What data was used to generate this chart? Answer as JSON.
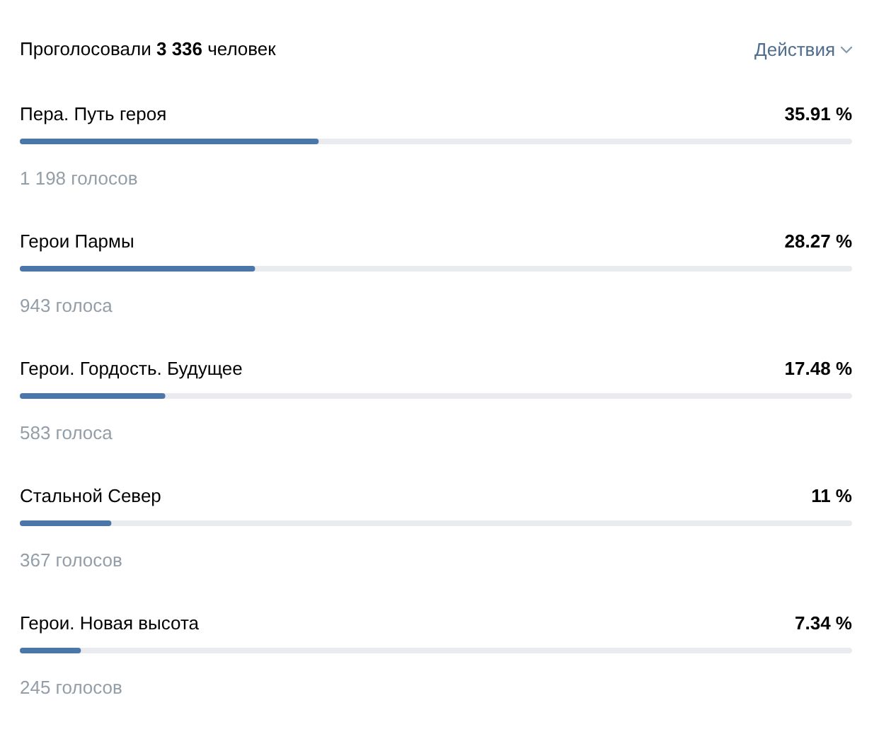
{
  "chart_data": {
    "type": "bar",
    "orientation": "horizontal",
    "title": "Проголосовали 3 336 человек",
    "categories": [
      "Пера. Путь героя",
      "Герои Пармы",
      "Герои. Гордость. Будущее",
      "Стальной Север",
      "Герои. Новая высота"
    ],
    "values": [
      35.91,
      28.27,
      17.48,
      11,
      7.34
    ],
    "color": "#4a76a8",
    "xlim": [
      0,
      100
    ],
    "tick_labels": "y",
    "value_labels": [
      "35.91 %",
      "28.27 %",
      "17.48 %",
      "11 %",
      "7.34 %"
    ],
    "annotations": [
      "Действия",
      "1 198 голосов",
      "943 голоса",
      "583 голоса",
      "367 голосов",
      "245 голосов"
    ]
  }
}
